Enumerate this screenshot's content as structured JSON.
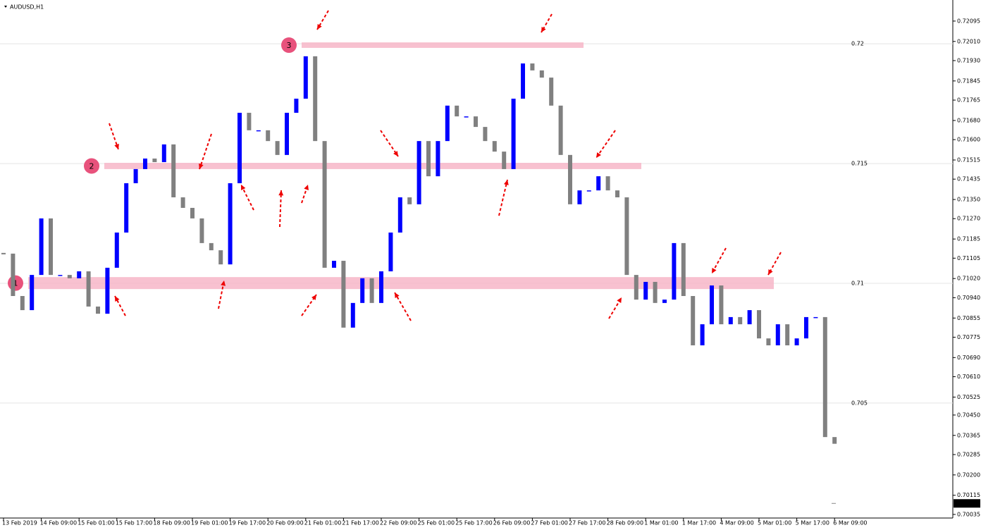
{
  "chart_data": {
    "type": "candlestick",
    "title": "AUDUSD,H1",
    "up_color": "#0000ff",
    "down_color": "#808080",
    "values": [
      0.71124,
      0.70947,
      0.70888,
      0.71035,
      0.71271,
      0.71035,
      0.71035,
      0.71021,
      0.7105,
      0.70903,
      0.70873,
      0.71065,
      0.71212,
      0.71418,
      0.71477,
      0.71521,
      0.71506,
      0.7158,
      0.71359,
      0.71315,
      0.71271,
      0.71168,
      0.71138,
      0.71079,
      0.71418,
      0.71712,
      0.71639,
      0.71639,
      0.71594,
      0.71536,
      0.71712,
      0.71771,
      0.71948,
      0.71594,
      0.71065,
      0.71094,
      0.70815,
      0.70918,
      0.71021,
      0.70918,
      0.7105,
      0.71212,
      0.71359,
      0.7133,
      0.71594,
      0.71447,
      0.71594,
      0.71742,
      0.71697,
      0.71697,
      0.71653,
      0.71594,
      0.7155,
      0.71477,
      0.71771,
      0.71918,
      0.71889,
      0.71859,
      0.71742,
      0.71536,
      0.7133,
      0.71388,
      0.71388,
      0.71447,
      0.71388,
      0.71359,
      0.71035,
      0.70932,
      0.71006,
      0.70918,
      0.70932,
      0.71168,
      0.70947,
      0.70741,
      0.70829,
      0.70991,
      0.70829,
      0.70859,
      0.70829,
      0.70888,
      0.7077,
      0.70741,
      0.70829,
      0.70741,
      0.7077,
      0.70859,
      0.70859,
      0.70358,
      0.7033
    ],
    "xlabels": [
      "13 Feb 2019",
      "14 Feb 09:00",
      "15 Feb 01:00",
      "15 Feb 17:00",
      "18 Feb 09:00",
      "19 Feb 01:00",
      "19 Feb 17:00",
      "20 Feb 09:00",
      "21 Feb 01:00",
      "21 Feb 17:00",
      "22 Feb 09:00",
      "25 Feb 01:00",
      "25 Feb 17:00",
      "26 Feb 09:00",
      "27 Feb 01:00",
      "27 Feb 17:00",
      "28 Feb 09:00",
      "1 Mar 01:00",
      "1 Mar 17:00",
      "4 Mar 09:00",
      "5 Mar 01:00",
      "5 Mar 17:00",
      "6 Mar 09:00"
    ],
    "ylim": [
      0.7002,
      0.72183
    ],
    "yticks": [
      0.72095,
      {
        "value": 0.7201,
        "label": "0.72010"
      },
      {
        "value": 0.7193,
        "label": "0.71930"
      },
      0.71845,
      0.71765,
      {
        "value": 0.7168,
        "label": "0.71680"
      },
      {
        "value": 0.716,
        "label": "0.71600"
      },
      0.71515,
      0.71435,
      {
        "value": 0.7135,
        "label": "0.71350"
      },
      {
        "value": 0.7127,
        "label": "0.71270"
      },
      0.71185,
      0.71105,
      {
        "value": 0.7102,
        "label": "0.71020"
      },
      {
        "value": 0.7094,
        "label": "0.70940"
      },
      0.70855,
      0.70775,
      {
        "value": 0.7069,
        "label": "0.70690"
      },
      {
        "value": 0.7061,
        "label": "0.70610"
      },
      0.70525,
      {
        "value": 0.7045,
        "label": "0.70450"
      },
      0.70365,
      0.70285,
      {
        "value": 0.702,
        "label": "0.70200"
      },
      0.70115,
      0.70035
    ],
    "levels": [
      0.72,
      0.715,
      0.71,
      0.705
    ],
    "current_price": 0.70081,
    "zones": [
      {
        "label": "1",
        "low": 0.70976,
        "high": 0.71026
      },
      {
        "label": "2",
        "low": 0.71477,
        "high": 0.71503
      },
      {
        "label": "3",
        "low": 0.71983,
        "high": 0.72006
      }
    ]
  }
}
